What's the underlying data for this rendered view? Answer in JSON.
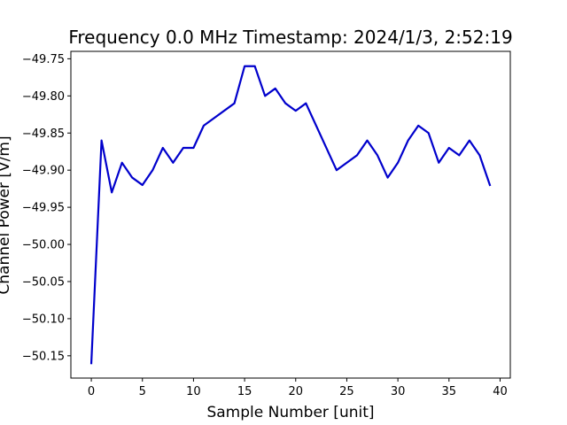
{
  "chart_data": {
    "type": "line",
    "title": "Frequency 0.0 MHz Timestamp: 2024/1/3, 2:52:19",
    "xlabel": "Sample Number [unit]",
    "ylabel": "Channel Power [V/m]",
    "xlim": [
      -2,
      41
    ],
    "ylim": [
      -50.18,
      -49.74
    ],
    "xticks": [
      0,
      5,
      10,
      15,
      20,
      25,
      30,
      35,
      40
    ],
    "yticks": [
      -50.15,
      -50.1,
      -50.05,
      -50.0,
      -49.95,
      -49.9,
      -49.85,
      -49.8,
      -49.75
    ],
    "ytick_labels": [
      "−50.15",
      "−50.10",
      "−50.05",
      "−50.00",
      "−49.95",
      "−49.90",
      "−49.85",
      "−49.80",
      "−49.75"
    ],
    "grid": false,
    "line_color": "#0000cc",
    "series": [
      {
        "x": [
          0,
          1,
          2,
          3,
          4,
          5,
          6,
          7,
          8,
          9,
          10,
          11,
          14,
          15,
          16,
          17,
          18,
          19,
          20,
          21,
          24,
          26,
          27,
          28,
          29,
          30,
          31,
          32,
          33,
          34,
          35,
          36,
          37,
          38,
          39
        ],
        "values": [
          -50.16,
          -49.86,
          -49.93,
          -49.89,
          -49.91,
          -49.92,
          -49.9,
          -49.87,
          -49.89,
          -49.87,
          -49.87,
          -49.84,
          -49.81,
          -49.76,
          -49.76,
          -49.8,
          -49.79,
          -49.81,
          -49.82,
          -49.81,
          -49.9,
          -49.88,
          -49.86,
          -49.88,
          -49.91,
          -49.89,
          -49.86,
          -49.84,
          -49.85,
          -49.89,
          -49.87,
          -49.88,
          -49.86,
          -49.88,
          -49.92
        ]
      }
    ]
  }
}
